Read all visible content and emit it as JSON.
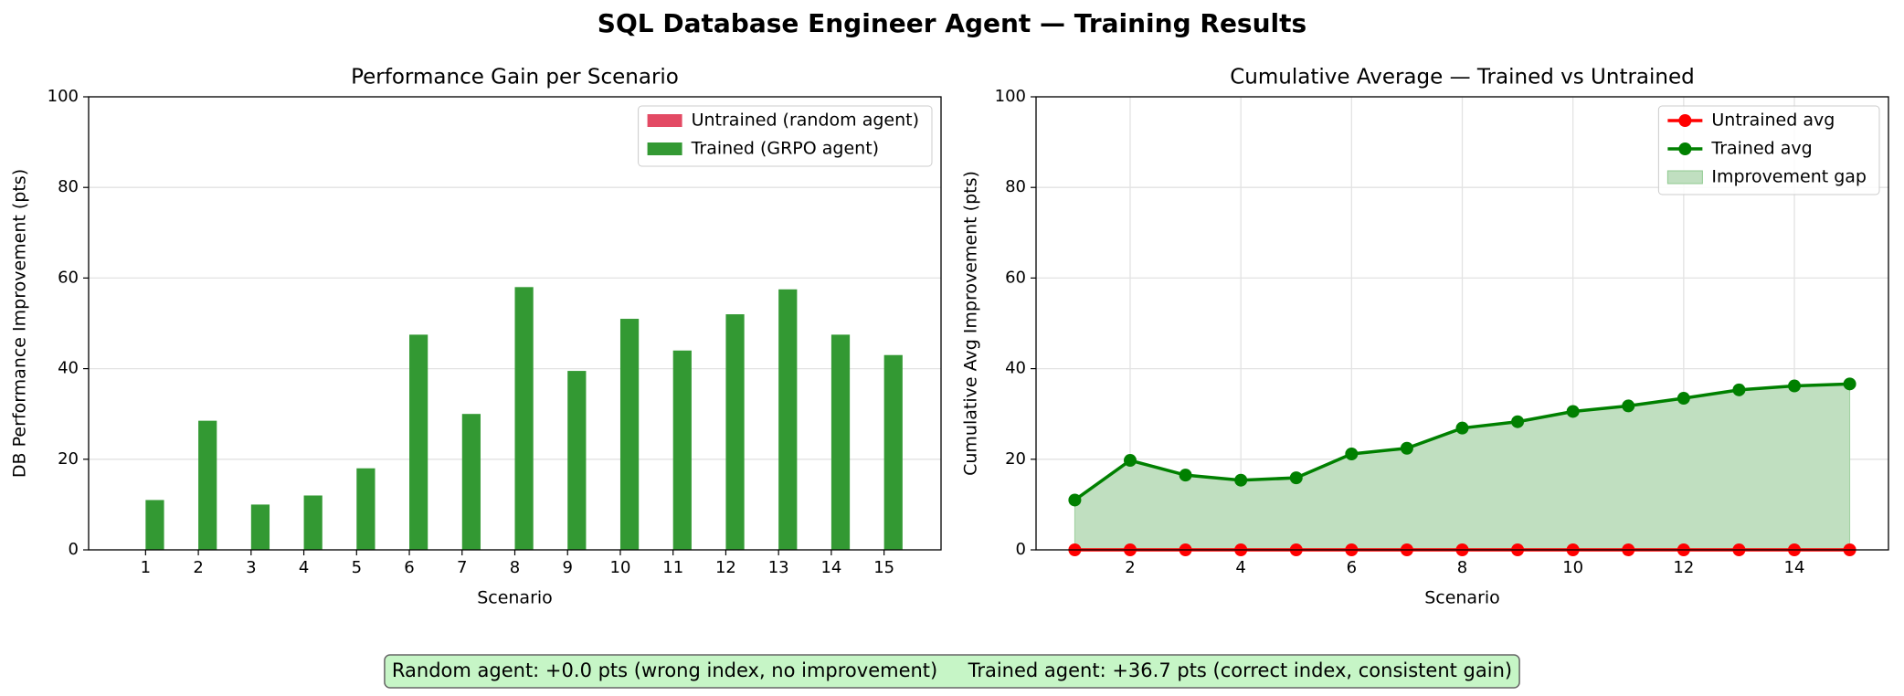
{
  "title": "SQL Database Engineer Agent — Training Results",
  "footer": "Random agent: +0.0 pts (wrong index, no improvement)     Trained agent: +36.7 pts (correct index, consistent gain)",
  "chart_data": [
    {
      "type": "bar",
      "title": "Performance Gain per Scenario",
      "x_label": "Scenario",
      "y_label": "DB Performance Improvement (pts)",
      "categories": [
        "1",
        "2",
        "3",
        "4",
        "5",
        "6",
        "7",
        "8",
        "9",
        "10",
        "11",
        "12",
        "13",
        "14",
        "15"
      ],
      "series": [
        {
          "name": "Untrained (random agent)",
          "color": "#e34a64",
          "values": [
            0,
            0,
            0,
            0,
            0,
            0,
            0,
            0,
            0,
            0,
            0,
            0,
            0,
            0,
            0
          ]
        },
        {
          "name": "Trained (GRPO agent)",
          "color": "#339933",
          "values": [
            11,
            28.5,
            10,
            12,
            18,
            47.5,
            30,
            58,
            39.5,
            51,
            44,
            52,
            57.5,
            47.5,
            43
          ]
        }
      ],
      "ylim": [
        0,
        100
      ],
      "yticks": [
        0,
        20,
        40,
        60,
        80,
        100
      ],
      "grid": true,
      "grid_x": false,
      "legend": "upper right"
    },
    {
      "type": "line",
      "title": "Cumulative Average — Trained vs Untrained",
      "x_label": "Scenario",
      "y_label": "Cumulative Avg Improvement (pts)",
      "x": [
        1,
        2,
        3,
        4,
        5,
        6,
        7,
        8,
        9,
        10,
        11,
        12,
        13,
        14,
        15
      ],
      "series": [
        {
          "name": "Untrained avg",
          "color": "#ff0000",
          "values": [
            0,
            0,
            0,
            0,
            0,
            0,
            0,
            0,
            0,
            0,
            0,
            0,
            0,
            0,
            0
          ]
        },
        {
          "name": "Trained avg",
          "color": "#008000",
          "values": [
            11,
            19.75,
            16.5,
            15.38,
            15.9,
            21.17,
            22.43,
            26.88,
            28.28,
            30.55,
            31.77,
            33.46,
            35.31,
            36.18,
            36.63
          ]
        }
      ],
      "fill": {
        "name": "Improvement gap",
        "color": "#c0dfc0"
      },
      "xlim": [
        0.3,
        15.7
      ],
      "xticks": [
        2,
        4,
        6,
        8,
        10,
        12,
        14
      ],
      "ylim": [
        0,
        100
      ],
      "yticks": [
        0,
        20,
        40,
        60,
        80,
        100
      ],
      "grid": true,
      "grid_x": true,
      "legend": "upper right"
    }
  ]
}
